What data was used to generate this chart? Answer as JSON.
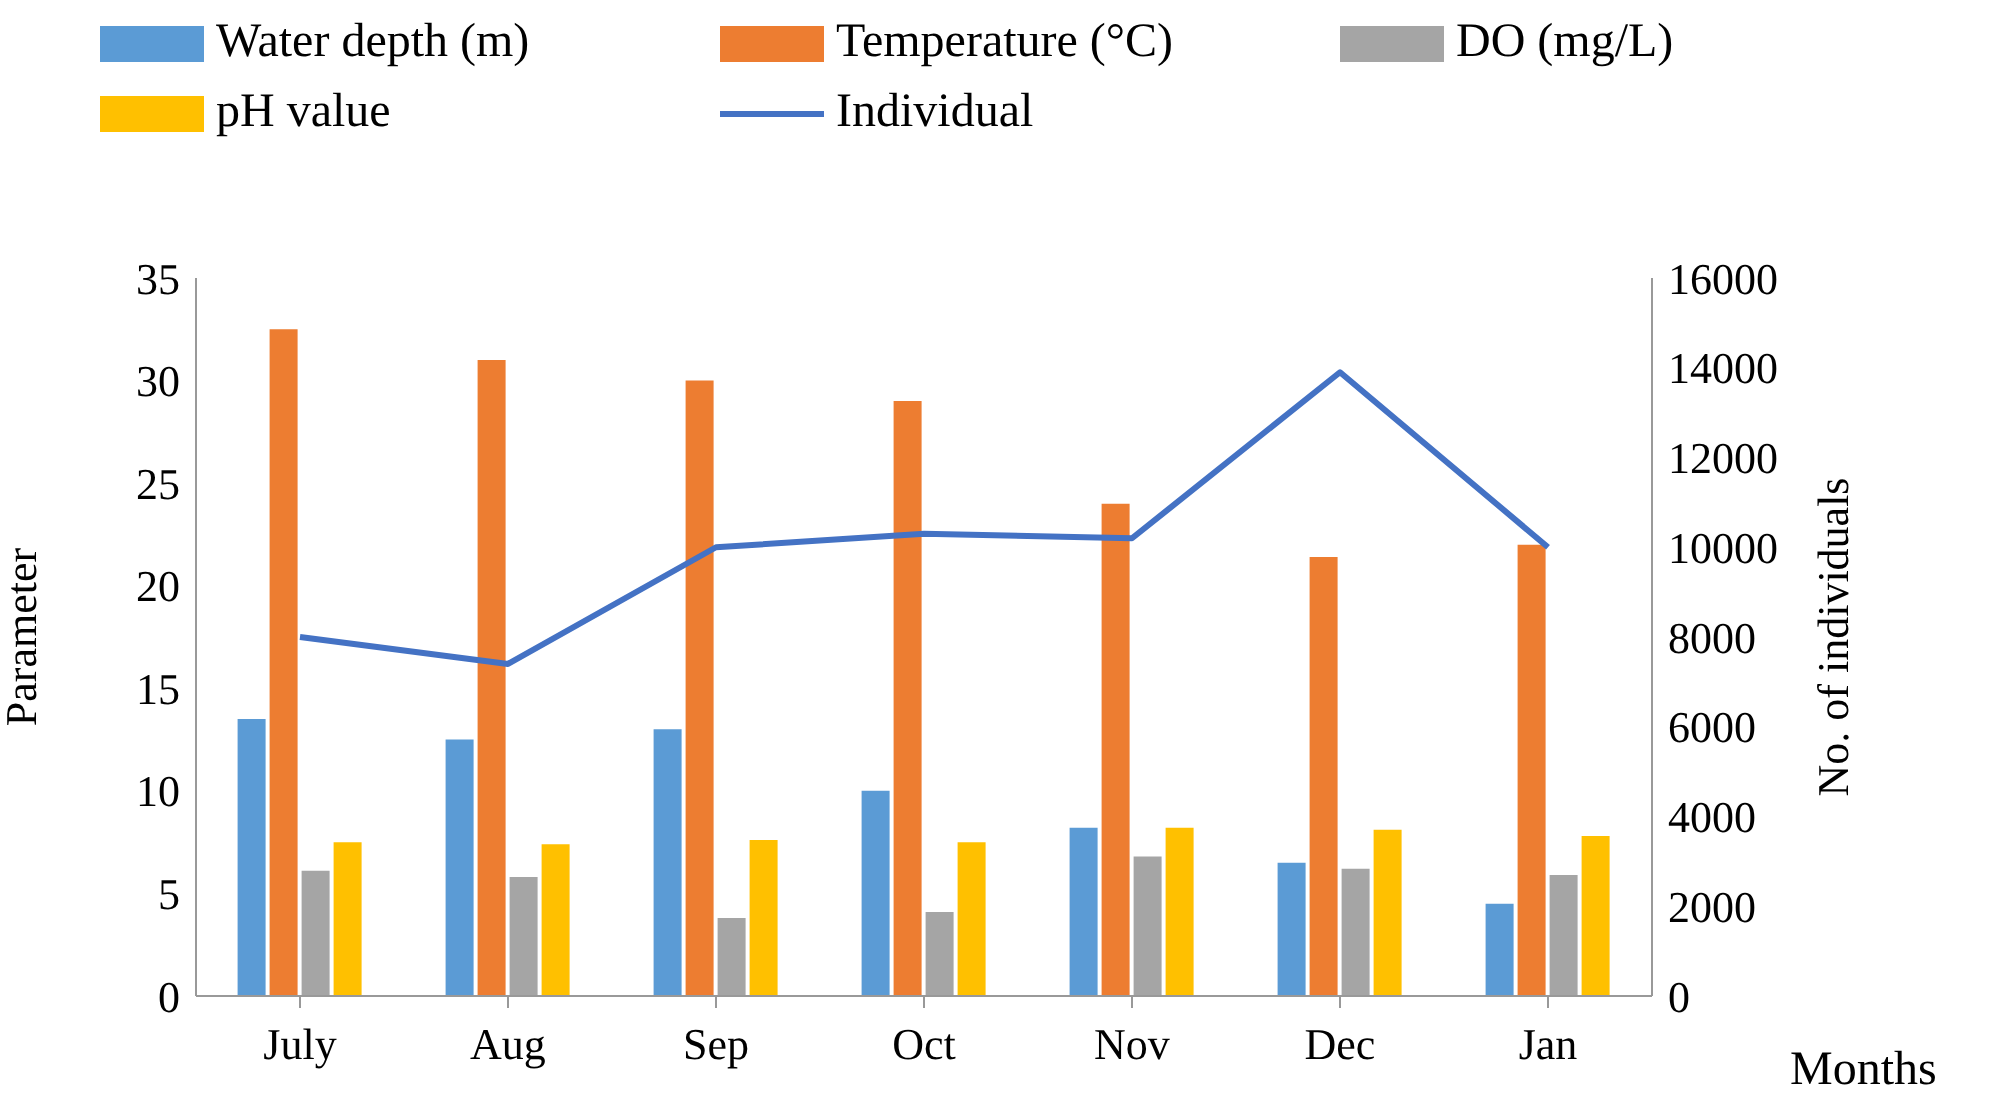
{
  "chart_data": {
    "type": "bar",
    "xlabel": "Months",
    "ylabel": "Parameter",
    "y2label": "No. of individuals",
    "categories": [
      "July",
      "Aug",
      "Sep",
      "Oct",
      "Nov",
      "Dec",
      "Jan"
    ],
    "series": [
      {
        "name": "Water depth (m)",
        "color": "#5b9bd5",
        "values": [
          13.5,
          12.5,
          13,
          10,
          8.2,
          6.5,
          4.5
        ]
      },
      {
        "name": "Temperature (°C)",
        "color": "#ed7d31",
        "values": [
          32.5,
          31,
          30,
          29,
          24,
          21.4,
          22
        ]
      },
      {
        "name": "DO (mg/L)",
        "color": "#a5a5a5",
        "values": [
          6.1,
          5.8,
          3.8,
          4.1,
          6.8,
          6.2,
          5.9
        ]
      },
      {
        "name": "pH value",
        "color": "#ffc000",
        "values": [
          7.5,
          7.4,
          7.6,
          7.5,
          8.2,
          8.1,
          7.8
        ]
      },
      {
        "name": "Individual",
        "type": "line",
        "axis": "y2",
        "color": "#4472c4",
        "values": [
          8000,
          7400,
          10000,
          10300,
          10200,
          13900,
          10000
        ]
      }
    ],
    "ylim": [
      0,
      35
    ],
    "yticks": [
      0,
      5,
      10,
      15,
      20,
      25,
      30,
      35
    ],
    "y2lim": [
      0,
      16000
    ],
    "y2ticks": [
      0,
      2000,
      4000,
      6000,
      8000,
      10000,
      12000,
      14000,
      16000
    ],
    "grid": false,
    "legend": "top",
    "marker": "none"
  }
}
